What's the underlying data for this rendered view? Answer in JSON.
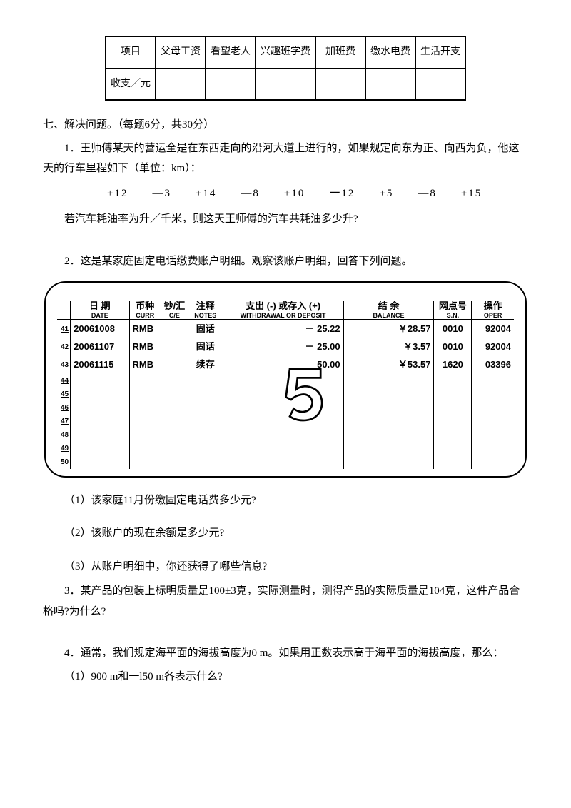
{
  "topTable": {
    "headers": [
      "项目",
      "父母工资",
      "看望老人",
      "兴趣班学费",
      "加班费",
      "缴水电费",
      "生活开支"
    ],
    "rowLabel": "收支／元"
  },
  "section7": {
    "heading": "七、解决问题。（每题6分，共30分）",
    "q1": {
      "p1": "1．王师傅某天的营运全是在东西走向的沿河大道上进行的，如果规定向东为正、向西为负，他这天的行车里程如下（单位：km）：",
      "nums": "+12　　—3　　+14　　—8　　+10　　一12　　+5　　—8　　+15",
      "p2": "若汽车耗油率为升／千米，则这天王师傅的汽车共耗油多少升?"
    },
    "q2": {
      "intro": "2．这是某家庭固定电话缴费账户明细。观察该账户明细，回答下列问题。",
      "cols": [
        {
          "cn": "日 期",
          "en": "DATE"
        },
        {
          "cn": "币种",
          "en": "CURR"
        },
        {
          "cn": "钞/汇",
          "en": "C/E"
        },
        {
          "cn": "注释",
          "en": "NOTES"
        },
        {
          "cn": "支出 (-) 或存入 (+)",
          "en": "WITHDRAWAL OR DEPOSIT"
        },
        {
          "cn": "结 余",
          "en": "BALANCE"
        },
        {
          "cn": "网点号",
          "en": "S.N."
        },
        {
          "cn": "操作",
          "en": "OPER"
        }
      ],
      "rows": [
        {
          "n": "41",
          "date": "20061008",
          "curr": "RMB",
          "ce": "",
          "notes": "固话",
          "wd": "－ 25.22",
          "bal": "￥28.57",
          "sn": "0010",
          "op": "92004"
        },
        {
          "n": "42",
          "date": "20061107",
          "curr": "RMB",
          "ce": "",
          "notes": "固话",
          "wd": "－ 25.00",
          "bal": "￥3.57",
          "sn": "0010",
          "op": "92004"
        },
        {
          "n": "43",
          "date": "20061115",
          "curr": "RMB",
          "ce": "",
          "notes": "续存",
          "wd": "50.00",
          "bal": "￥53.57",
          "sn": "1620",
          "op": "03396"
        }
      ],
      "blankRows": [
        "44",
        "45",
        "46",
        "47",
        "48",
        "49",
        "50"
      ],
      "sub1": "（1）该家庭11月份缴固定电话费多少元?",
      "sub2": "（2）该账户的现在余额是多少元?",
      "sub3": "（3）从账户明细中，你还获得了哪些信息?"
    },
    "q3": "3．某产品的包装上标明质量是100±3克，实际测量时，测得产品的实际质量是104克，这件产品合格吗?为什么?",
    "q4": {
      "p1": "4．通常，我们规定海平面的海拔高度为0 m。如果用正数表示高于海平面的海拔高度，那么：",
      "sub1": "（1）900 m和一l50 m各表示什么?"
    }
  },
  "style": {
    "text_color": "#000000",
    "background": "#ffffff",
    "border_color": "#000000"
  }
}
